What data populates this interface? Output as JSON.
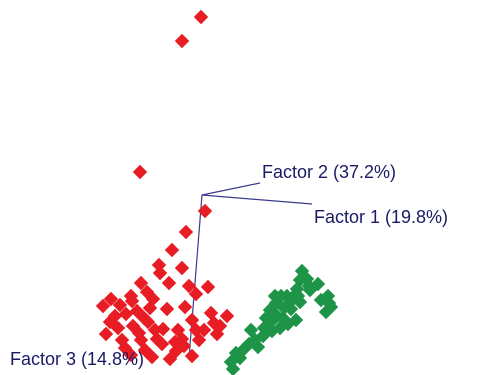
{
  "chart_data": {
    "type": "scatter",
    "projection": "3d",
    "title": "",
    "axes": [
      {
        "id": "factor1",
        "label": "Factor 1 (19.8%)"
      },
      {
        "id": "factor2",
        "label": "Factor 2 (37.2%)"
      },
      {
        "id": "factor3",
        "label": "Factor 3 (14.8%)"
      }
    ],
    "grid": false,
    "legend": "none",
    "series": [
      {
        "color": "#e81c24",
        "marker": "diamond",
        "points": [
          [
            201,
            17
          ],
          [
            182,
            41
          ],
          [
            140,
            172
          ],
          [
            205,
            211
          ],
          [
            186,
            232
          ],
          [
            172,
            250
          ],
          [
            159,
            265
          ],
          [
            182,
            268
          ],
          [
            141,
            283
          ],
          [
            169,
            283
          ],
          [
            208,
            287
          ],
          [
            196,
            294
          ],
          [
            153,
            299
          ],
          [
            132,
            301
          ],
          [
            111,
            299
          ],
          [
            167,
            309
          ],
          [
            185,
            307
          ],
          [
            211,
            313
          ],
          [
            144,
            318
          ],
          [
            126,
            314
          ],
          [
            115,
            316
          ],
          [
            133,
            326
          ],
          [
            155,
            330
          ],
          [
            178,
            330
          ],
          [
            220,
            326
          ],
          [
            204,
            330
          ],
          [
            122,
            340
          ],
          [
            141,
            340
          ],
          [
            162,
            344
          ],
          [
            184,
            346
          ],
          [
            106,
            334
          ],
          [
            131,
            355
          ],
          [
            152,
            357
          ],
          [
            170,
            359
          ],
          [
            192,
            356
          ],
          [
            214,
            323
          ],
          [
            227,
            316
          ],
          [
            137,
            311
          ],
          [
            118,
            328
          ],
          [
            148,
            322
          ],
          [
            163,
            329
          ],
          [
            199,
            340
          ],
          [
            125,
            348
          ],
          [
            145,
            350
          ],
          [
            176,
            351
          ],
          [
            110,
            322
          ],
          [
            150,
            308
          ],
          [
            192,
            320
          ],
          [
            217,
            334
          ],
          [
            139,
            333
          ],
          [
            131,
            296
          ],
          [
            120,
            305
          ],
          [
            157,
            339
          ],
          [
            175,
            342
          ],
          [
            189,
            286
          ],
          [
            160,
            273
          ],
          [
            147,
            292
          ],
          [
            103,
            306
          ],
          [
            196,
            330
          ],
          [
            182,
            339
          ]
        ]
      },
      {
        "color": "#1e9448",
        "marker": "diamond",
        "points": [
          [
            302,
            271
          ],
          [
            307,
            279
          ],
          [
            297,
            289
          ],
          [
            293,
            297
          ],
          [
            287,
            296
          ],
          [
            281,
            296
          ],
          [
            276,
            303
          ],
          [
            270,
            310
          ],
          [
            266,
            318
          ],
          [
            284,
            308
          ],
          [
            291,
            309
          ],
          [
            300,
            302
          ],
          [
            310,
            290
          ],
          [
            318,
            284
          ],
          [
            328,
            296
          ],
          [
            331,
            307
          ],
          [
            326,
            312
          ],
          [
            296,
            320
          ],
          [
            288,
            324
          ],
          [
            280,
            328
          ],
          [
            272,
            331
          ],
          [
            263,
            336
          ],
          [
            255,
            340
          ],
          [
            249,
            344
          ],
          [
            243,
            350
          ],
          [
            236,
            353
          ],
          [
            231,
            362
          ],
          [
            251,
            330
          ],
          [
            283,
            318
          ],
          [
            300,
            280
          ],
          [
            298,
            296
          ],
          [
            288,
            304
          ],
          [
            277,
            316
          ],
          [
            258,
            347
          ],
          [
            270,
            323
          ],
          [
            309,
            286
          ],
          [
            321,
            300
          ],
          [
            329,
            303
          ],
          [
            240,
            358
          ],
          [
            233,
            369
          ],
          [
            264,
            328
          ],
          [
            275,
            296
          ]
        ]
      }
    ]
  },
  "labels": {
    "factor1": "Factor 1 (19.8%)",
    "factor2": "Factor 2 (37.2%)",
    "factor3": "Factor 3 (14.8%)"
  }
}
